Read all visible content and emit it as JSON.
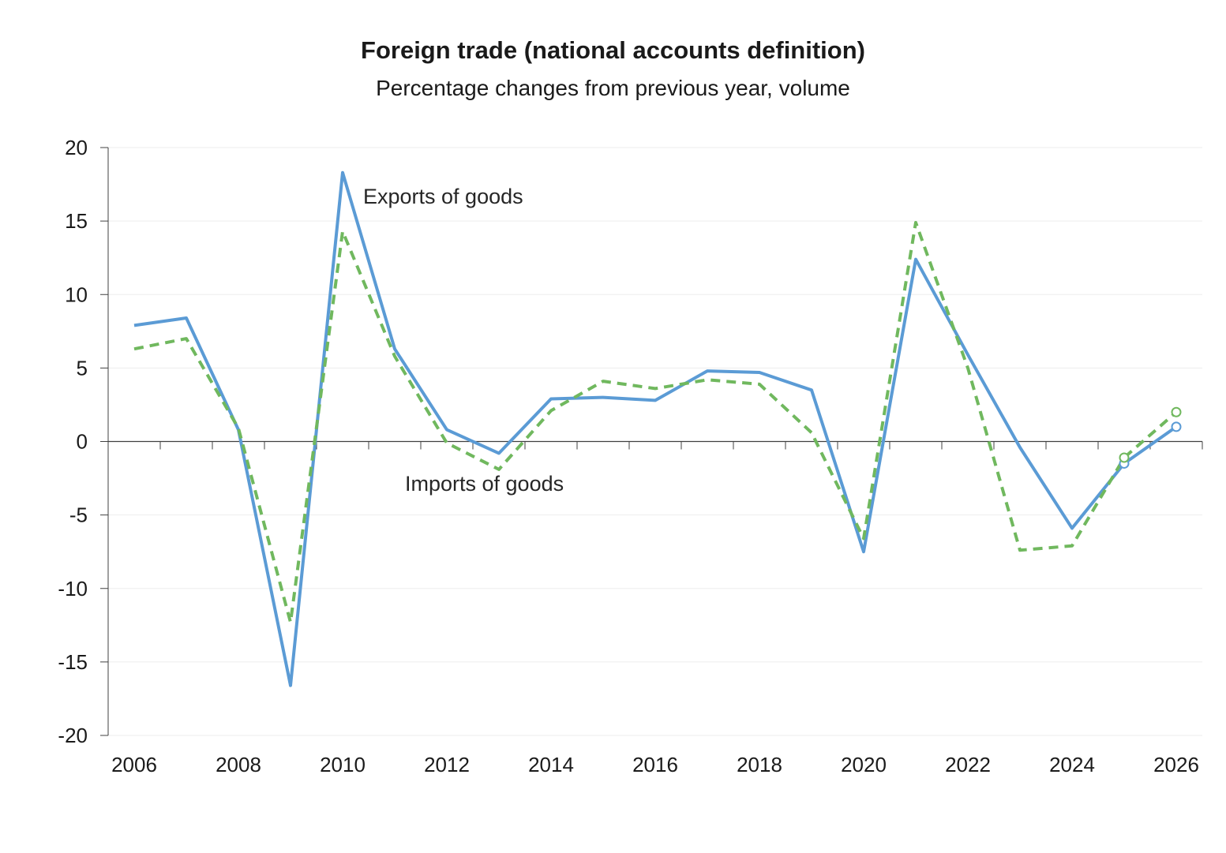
{
  "chart_data": {
    "type": "line",
    "title": "Foreign trade (national accounts definition)",
    "subtitle": "Percentage changes from previous year, volume",
    "x": [
      2006,
      2007,
      2008,
      2009,
      2010,
      2011,
      2012,
      2013,
      2014,
      2015,
      2016,
      2017,
      2018,
      2019,
      2020,
      2021,
      2022,
      2023,
      2024,
      2025,
      2026
    ],
    "x_ticks": [
      "2006",
      "2008",
      "2010",
      "2012",
      "2014",
      "2016",
      "2018",
      "2020",
      "2022",
      "2024",
      "2026"
    ],
    "y_ticks": [
      "20",
      "15",
      "10",
      "5",
      "0",
      "-5",
      "-10",
      "-15",
      "-20"
    ],
    "ylim": [
      -20,
      20
    ],
    "xlim": [
      2006,
      2026
    ],
    "grid": "horizontal",
    "series": [
      {
        "name": "Exports of goods",
        "color": "#5b9bd5",
        "style": "solid",
        "values": [
          7.9,
          8.4,
          0.8,
          -16.6,
          18.3,
          6.3,
          0.8,
          -0.8,
          2.9,
          3.0,
          2.8,
          4.8,
          4.7,
          3.5,
          -7.5,
          12.4,
          5.9,
          -0.4,
          -5.9,
          -1.5,
          1.0
        ],
        "forecast_from": 2025
      },
      {
        "name": "Imports of goods",
        "color": "#70b85e",
        "style": "dashed",
        "values": [
          6.3,
          7.0,
          0.9,
          -12.3,
          14.3,
          5.8,
          -0.1,
          -1.9,
          2.1,
          4.1,
          3.6,
          4.2,
          3.9,
          0.6,
          -6.6,
          14.9,
          5.0,
          -7.4,
          -7.1,
          -1.1,
          2.0
        ],
        "forecast_from": 2025
      }
    ],
    "annotations": [
      {
        "text": "Exports of goods"
      },
      {
        "text": "Imports of goods"
      }
    ]
  }
}
